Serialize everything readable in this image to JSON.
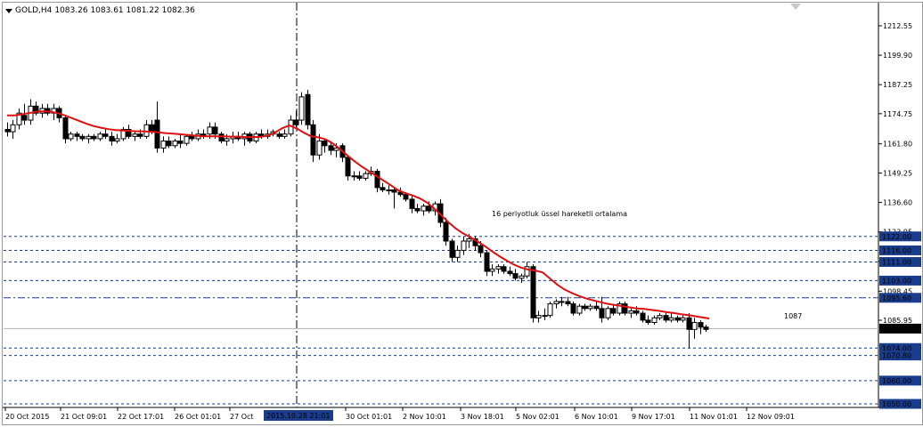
{
  "header": {
    "symbol": "GOLD,H4",
    "ohlc": "1083.26 1083.61 1081.22 1082.36"
  },
  "annotation_text": "16 periyotluk üssel hareketli ortalama",
  "ma_end_label": "1087",
  "current_price_label": "1082.36",
  "cursor_time_label": "2015.10.28 21:01",
  "colors": {
    "ma_line": "#e01010",
    "level_line": "#1a3c8c",
    "level_label_bg": "#1a3c8c",
    "price_label_bg": "#000000",
    "candle": "#000000"
  },
  "chart_data": {
    "type": "candlestick",
    "title": "GOLD,H4",
    "ylim": [
      1048,
      1222
    ],
    "y_ticks": [
      "1212.55",
      "1199.90",
      "1187.25",
      "1174.75",
      "1161.80",
      "1149.25",
      "1136.60",
      "1123.95",
      "1111.30",
      "1098.45",
      "1085.95"
    ],
    "x_ticks": [
      "20 Oct 2015",
      "21 Oct 09:01",
      "22 Oct 17:01",
      "26 Oct 01:01",
      "27 Oct",
      "30 Oct 01:01",
      "2 Nov 10:01",
      "3 Nov 18:01",
      "5 Nov 02:01",
      "6 Nov 10:01",
      "9 Nov 17:01",
      "11 Nov 01:01",
      "12 Nov 09:01"
    ],
    "horizontal_levels": [
      {
        "value": 1122.0,
        "label": "1122.00",
        "style": "dashed"
      },
      {
        "value": 1116.0,
        "label": "1116.00",
        "style": "dashed"
      },
      {
        "value": 1111.0,
        "label": "1111.00",
        "style": "dashed"
      },
      {
        "value": 1103.0,
        "label": "1103.00",
        "style": "dashed"
      },
      {
        "value": 1095.6,
        "label": "1095.60",
        "style": "dash-dot"
      },
      {
        "value": 1074.0,
        "label": "1074.00",
        "style": "dashed"
      },
      {
        "value": 1070.8,
        "label": "1070.80",
        "style": "dashed"
      },
      {
        "value": 1060.0,
        "label": "1060.00",
        "style": "dashed"
      },
      {
        "value": 1050.0,
        "label": "1050.00",
        "style": "dashed"
      }
    ],
    "current_price": 1082.36,
    "moving_average": {
      "name": "16 periyotluk üssel hareketli ortalama",
      "end_value": 1087,
      "values": [
        1174.0,
        1174.0,
        1174.5,
        1175.0,
        1175.6,
        1175.8,
        1175.6,
        1175.0,
        1174.0,
        1172.8,
        1171.6,
        1170.4,
        1169.4,
        1168.7,
        1168.1,
        1167.7,
        1167.5,
        1167.3,
        1167.2,
        1167.1,
        1167.0,
        1166.7,
        1166.4,
        1166.2,
        1165.9,
        1165.6,
        1165.3,
        1165.1,
        1165.0,
        1165.0,
        1165.0,
        1164.9,
        1164.8,
        1164.7,
        1164.7,
        1164.8,
        1165.3,
        1166.6,
        1168.5,
        1169.7,
        1168.4,
        1166.6,
        1165.0,
        1164.6,
        1163.7,
        1162.0,
        1159.5,
        1156.8,
        1154.3,
        1152.0,
        1150.0,
        1148.0,
        1146.0,
        1144.0,
        1141.9,
        1140.6,
        1139.6,
        1138.4,
        1136.6,
        1134.0,
        1131.0,
        1128.0,
        1125.4,
        1123.3,
        1121.6,
        1119.8,
        1117.8,
        1115.6,
        1113.5,
        1111.6,
        1109.9,
        1108.6,
        1107.7,
        1107.3,
        1106.5,
        1103.9,
        1101.3,
        1099.2,
        1097.7,
        1096.4,
        1095.3,
        1094.5,
        1093.7,
        1093.0,
        1092.5,
        1092.0,
        1091.5,
        1091.0,
        1090.8,
        1090.4,
        1090.0,
        1089.5,
        1089.1,
        1088.6,
        1088.2,
        1087.7,
        1087.2,
        1086.7
      ]
    },
    "candles": [
      {
        "o": 1168,
        "h": 1171,
        "l": 1165,
        "c": 1167
      },
      {
        "o": 1167,
        "h": 1172,
        "l": 1164,
        "c": 1170
      },
      {
        "o": 1170,
        "h": 1177,
        "l": 1168,
        "c": 1175
      },
      {
        "o": 1174,
        "h": 1179,
        "l": 1170,
        "c": 1172
      },
      {
        "o": 1172,
        "h": 1181,
        "l": 1170,
        "c": 1178
      },
      {
        "o": 1178,
        "h": 1180,
        "l": 1174,
        "c": 1175
      },
      {
        "o": 1175,
        "h": 1179,
        "l": 1173,
        "c": 1177
      },
      {
        "o": 1177,
        "h": 1179,
        "l": 1174,
        "c": 1175
      },
      {
        "o": 1175,
        "h": 1179,
        "l": 1172,
        "c": 1177
      },
      {
        "o": 1177,
        "h": 1178,
        "l": 1171,
        "c": 1173
      },
      {
        "o": 1173,
        "h": 1174,
        "l": 1162,
        "c": 1164
      },
      {
        "o": 1164,
        "h": 1167,
        "l": 1163,
        "c": 1166
      },
      {
        "o": 1166,
        "h": 1167,
        "l": 1163,
        "c": 1165
      },
      {
        "o": 1165,
        "h": 1166,
        "l": 1163,
        "c": 1164
      },
      {
        "o": 1164,
        "h": 1166,
        "l": 1162,
        "c": 1165
      },
      {
        "o": 1165,
        "h": 1166,
        "l": 1163,
        "c": 1164
      },
      {
        "o": 1164,
        "h": 1167,
        "l": 1163,
        "c": 1166
      },
      {
        "o": 1166,
        "h": 1168,
        "l": 1164,
        "c": 1165
      },
      {
        "o": 1165,
        "h": 1167,
        "l": 1161,
        "c": 1163
      },
      {
        "o": 1163,
        "h": 1166,
        "l": 1162,
        "c": 1164
      },
      {
        "o": 1164,
        "h": 1169,
        "l": 1163,
        "c": 1168
      },
      {
        "o": 1168,
        "h": 1170,
        "l": 1164,
        "c": 1165
      },
      {
        "o": 1165,
        "h": 1167,
        "l": 1163,
        "c": 1166
      },
      {
        "o": 1166,
        "h": 1168,
        "l": 1164,
        "c": 1165
      },
      {
        "o": 1165,
        "h": 1172,
        "l": 1164,
        "c": 1170
      },
      {
        "o": 1170,
        "h": 1172,
        "l": 1166,
        "c": 1167
      },
      {
        "o": 1172,
        "h": 1180,
        "l": 1158,
        "c": 1160
      },
      {
        "o": 1160,
        "h": 1165,
        "l": 1158,
        "c": 1163
      },
      {
        "o": 1163,
        "h": 1165,
        "l": 1160,
        "c": 1161
      },
      {
        "o": 1161,
        "h": 1164,
        "l": 1160,
        "c": 1163
      },
      {
        "o": 1163,
        "h": 1166,
        "l": 1160,
        "c": 1162
      },
      {
        "o": 1162,
        "h": 1166,
        "l": 1161,
        "c": 1165
      },
      {
        "o": 1165,
        "h": 1167,
        "l": 1163,
        "c": 1164
      },
      {
        "o": 1164,
        "h": 1168,
        "l": 1163,
        "c": 1166
      },
      {
        "o": 1166,
        "h": 1168,
        "l": 1164,
        "c": 1165
      },
      {
        "o": 1166,
        "h": 1171,
        "l": 1164,
        "c": 1169
      },
      {
        "o": 1169,
        "h": 1171,
        "l": 1164,
        "c": 1166
      },
      {
        "o": 1166,
        "h": 1167,
        "l": 1162,
        "c": 1163
      },
      {
        "o": 1163,
        "h": 1166,
        "l": 1161,
        "c": 1164
      },
      {
        "o": 1164,
        "h": 1167,
        "l": 1162,
        "c": 1165
      },
      {
        "o": 1165,
        "h": 1167,
        "l": 1163,
        "c": 1164
      },
      {
        "o": 1164,
        "h": 1167,
        "l": 1161,
        "c": 1166
      },
      {
        "o": 1166,
        "h": 1167,
        "l": 1162,
        "c": 1163
      },
      {
        "o": 1163,
        "h": 1167,
        "l": 1162,
        "c": 1166
      },
      {
        "o": 1166,
        "h": 1168,
        "l": 1164,
        "c": 1165
      },
      {
        "o": 1165,
        "h": 1168,
        "l": 1164,
        "c": 1166
      },
      {
        "o": 1166,
        "h": 1168,
        "l": 1165,
        "c": 1167
      },
      {
        "o": 1166,
        "h": 1167,
        "l": 1164,
        "c": 1165
      },
      {
        "o": 1165,
        "h": 1168,
        "l": 1164,
        "c": 1166
      },
      {
        "o": 1166,
        "h": 1174,
        "l": 1165,
        "c": 1172
      },
      {
        "o": 1172,
        "h": 1176,
        "l": 1169,
        "c": 1170
      },
      {
        "o": 1172,
        "h": 1184,
        "l": 1170,
        "c": 1182
      },
      {
        "o": 1183,
        "h": 1185,
        "l": 1168,
        "c": 1170
      },
      {
        "o": 1170,
        "h": 1172,
        "l": 1154,
        "c": 1157
      },
      {
        "o": 1157,
        "h": 1166,
        "l": 1155,
        "c": 1163
      },
      {
        "o": 1163,
        "h": 1164,
        "l": 1158,
        "c": 1161
      },
      {
        "o": 1161,
        "h": 1163,
        "l": 1157,
        "c": 1159
      },
      {
        "o": 1159,
        "h": 1162,
        "l": 1156,
        "c": 1160
      },
      {
        "o": 1161,
        "h": 1162,
        "l": 1154,
        "c": 1156
      },
      {
        "o": 1156,
        "h": 1157,
        "l": 1146,
        "c": 1148
      },
      {
        "o": 1148,
        "h": 1150,
        "l": 1146,
        "c": 1148
      },
      {
        "o": 1148,
        "h": 1150,
        "l": 1146,
        "c": 1147
      },
      {
        "o": 1147,
        "h": 1150,
        "l": 1146,
        "c": 1149
      },
      {
        "o": 1149,
        "h": 1152,
        "l": 1148,
        "c": 1150
      },
      {
        "o": 1150,
        "h": 1151,
        "l": 1141,
        "c": 1143
      },
      {
        "o": 1143,
        "h": 1145,
        "l": 1141,
        "c": 1142
      },
      {
        "o": 1142,
        "h": 1144,
        "l": 1140,
        "c": 1142
      },
      {
        "o": 1142,
        "h": 1143,
        "l": 1134,
        "c": 1141
      },
      {
        "o": 1141,
        "h": 1143,
        "l": 1139,
        "c": 1140
      },
      {
        "o": 1140,
        "h": 1141,
        "l": 1137,
        "c": 1138
      },
      {
        "o": 1138,
        "h": 1140,
        "l": 1132,
        "c": 1134
      },
      {
        "o": 1134,
        "h": 1136,
        "l": 1132,
        "c": 1133
      },
      {
        "o": 1133,
        "h": 1136,
        "l": 1131,
        "c": 1135
      },
      {
        "o": 1135,
        "h": 1137,
        "l": 1132,
        "c": 1133
      },
      {
        "o": 1133,
        "h": 1137,
        "l": 1131,
        "c": 1136
      },
      {
        "o": 1136,
        "h": 1138,
        "l": 1126,
        "c": 1128
      },
      {
        "o": 1128,
        "h": 1130,
        "l": 1118,
        "c": 1120
      },
      {
        "o": 1120,
        "h": 1121,
        "l": 1111,
        "c": 1113
      },
      {
        "o": 1113,
        "h": 1118,
        "l": 1111,
        "c": 1116
      },
      {
        "o": 1116,
        "h": 1122,
        "l": 1114,
        "c": 1120
      },
      {
        "o": 1120,
        "h": 1123,
        "l": 1117,
        "c": 1121
      },
      {
        "o": 1121,
        "h": 1122,
        "l": 1116,
        "c": 1118
      },
      {
        "o": 1118,
        "h": 1120,
        "l": 1113,
        "c": 1115
      },
      {
        "o": 1115,
        "h": 1116,
        "l": 1105,
        "c": 1107
      },
      {
        "o": 1107,
        "h": 1110,
        "l": 1105,
        "c": 1108
      },
      {
        "o": 1108,
        "h": 1110,
        "l": 1106,
        "c": 1109
      },
      {
        "o": 1109,
        "h": 1110,
        "l": 1106,
        "c": 1107
      },
      {
        "o": 1107,
        "h": 1109,
        "l": 1105,
        "c": 1106
      },
      {
        "o": 1106,
        "h": 1108,
        "l": 1103,
        "c": 1104
      },
      {
        "o": 1104,
        "h": 1106,
        "l": 1102,
        "c": 1105
      },
      {
        "o": 1105,
        "h": 1111,
        "l": 1104,
        "c": 1109
      },
      {
        "o": 1109,
        "h": 1110,
        "l": 1085,
        "c": 1087
      },
      {
        "o": 1087,
        "h": 1090,
        "l": 1085,
        "c": 1088
      },
      {
        "o": 1088,
        "h": 1091,
        "l": 1086,
        "c": 1088
      },
      {
        "o": 1088,
        "h": 1094,
        "l": 1087,
        "c": 1093
      },
      {
        "o": 1093,
        "h": 1095,
        "l": 1091,
        "c": 1094
      },
      {
        "o": 1094,
        "h": 1096,
        "l": 1092,
        "c": 1094
      },
      {
        "o": 1094,
        "h": 1096,
        "l": 1092,
        "c": 1093
      },
      {
        "o": 1093,
        "h": 1094,
        "l": 1088,
        "c": 1089
      },
      {
        "o": 1089,
        "h": 1093,
        "l": 1088,
        "c": 1092
      },
      {
        "o": 1092,
        "h": 1093,
        "l": 1090,
        "c": 1091
      },
      {
        "o": 1091,
        "h": 1093,
        "l": 1090,
        "c": 1092
      },
      {
        "o": 1092,
        "h": 1094,
        "l": 1090,
        "c": 1091
      },
      {
        "o": 1091,
        "h": 1096,
        "l": 1085,
        "c": 1087
      },
      {
        "o": 1087,
        "h": 1092,
        "l": 1086,
        "c": 1091
      },
      {
        "o": 1091,
        "h": 1093,
        "l": 1088,
        "c": 1089
      },
      {
        "o": 1089,
        "h": 1094,
        "l": 1088,
        "c": 1093
      },
      {
        "o": 1093,
        "h": 1094,
        "l": 1088,
        "c": 1089
      },
      {
        "o": 1089,
        "h": 1091,
        "l": 1087,
        "c": 1090
      },
      {
        "o": 1090,
        "h": 1092,
        "l": 1088,
        "c": 1089
      },
      {
        "o": 1089,
        "h": 1090,
        "l": 1085,
        "c": 1086
      },
      {
        "o": 1086,
        "h": 1088,
        "l": 1084,
        "c": 1085
      },
      {
        "o": 1085,
        "h": 1088,
        "l": 1084,
        "c": 1087
      },
      {
        "o": 1087,
        "h": 1089,
        "l": 1086,
        "c": 1088
      },
      {
        "o": 1088,
        "h": 1089,
        "l": 1085,
        "c": 1086
      },
      {
        "o": 1086,
        "h": 1089,
        "l": 1085,
        "c": 1087
      },
      {
        "o": 1087,
        "h": 1088,
        "l": 1085,
        "c": 1086
      },
      {
        "o": 1086,
        "h": 1088,
        "l": 1085,
        "c": 1087
      },
      {
        "o": 1087,
        "h": 1089,
        "l": 1074,
        "c": 1082
      },
      {
        "o": 1082,
        "h": 1087,
        "l": 1078,
        "c": 1085
      },
      {
        "o": 1085,
        "h": 1086,
        "l": 1080,
        "c": 1083
      },
      {
        "o": 1083,
        "h": 1084,
        "l": 1081,
        "c": 1082
      }
    ]
  }
}
